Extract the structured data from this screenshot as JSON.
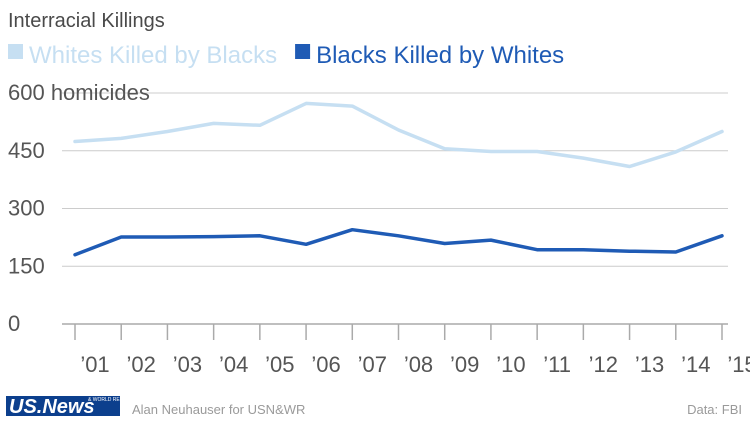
{
  "chart_data": {
    "type": "line",
    "title": "Interracial Killings",
    "categories": [
      "’01",
      "’02",
      "’03",
      "’04",
      "’05",
      "’06",
      "’07",
      "’08",
      "’09",
      "’10",
      "’11",
      "’12",
      "’13",
      "’14",
      "’15"
    ],
    "series": [
      {
        "name": "Whites Killed by Blacks",
        "color": "#c6dff2",
        "values": [
          474,
          482,
          500,
          521,
          516,
          573,
          566,
          504,
          455,
          448,
          448,
          431,
          409,
          447,
          500
        ]
      },
      {
        "name": "Blacks Killed by Whites",
        "color": "#1f5bb5",
        "values": [
          180,
          226,
          226,
          227,
          229,
          207,
          245,
          229,
          209,
          218,
          193,
          193,
          189,
          187,
          229
        ]
      }
    ],
    "yticks": [
      "0",
      "150",
      "300",
      "450",
      "600 homicides"
    ],
    "ytick_values": [
      0,
      150,
      300,
      450,
      600
    ],
    "ylim": [
      0,
      600
    ],
    "grid": true,
    "legend": "top"
  },
  "footer": {
    "logo_text": "US.News",
    "logo_subtext": "& WORLD REPORT",
    "credit": "Alan Neuhauser for USN&WR",
    "source": "Data: FBI"
  }
}
